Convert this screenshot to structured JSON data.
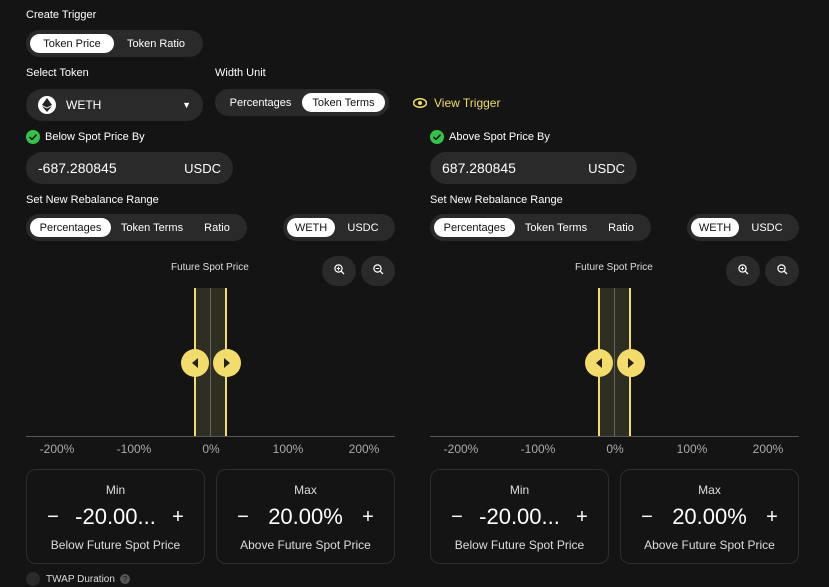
{
  "create_trigger": {
    "heading": "Create Trigger",
    "tabs": [
      {
        "label": "Token Price",
        "active": true
      },
      {
        "label": "Token Ratio",
        "active": false
      }
    ]
  },
  "select_token": {
    "heading": "Select Token",
    "value": "WETH",
    "icon": "ethereum-icon"
  },
  "width_unit": {
    "heading": "Width Unit",
    "tabs": [
      {
        "label": "Percentages",
        "active": false
      },
      {
        "label": "Token Terms",
        "active": true
      }
    ]
  },
  "view_trigger": {
    "label": "View Trigger",
    "icon": "eye-icon",
    "color": "#f2dc6b"
  },
  "panels": [
    {
      "check_label": "Below Spot Price By",
      "value": "-687.280845",
      "unit": "USDC",
      "rebalance_heading": "Set New Rebalance Range",
      "range_tabs": [
        {
          "label": "Percentages",
          "active": true
        },
        {
          "label": "Token Terms",
          "active": false
        },
        {
          "label": "Ratio",
          "active": false
        }
      ],
      "token_tabs": [
        {
          "label": "WETH",
          "active": true
        },
        {
          "label": "USDC",
          "active": false
        }
      ],
      "future_label": "Future Spot Price",
      "ticks": [
        "-200%",
        "-100%",
        "0%",
        "100%",
        "200%"
      ],
      "min": {
        "title": "Min",
        "value": "-20.00...",
        "sub": "Below Future Spot Price",
        "minus": "−",
        "plus": "+"
      },
      "max": {
        "title": "Max",
        "value": "20.00%",
        "sub": "Above Future Spot Price",
        "minus": "−",
        "plus": "+"
      }
    },
    {
      "check_label": "Above Spot Price By",
      "value": "687.280845",
      "unit": "USDC",
      "rebalance_heading": "Set New Rebalance Range",
      "range_tabs": [
        {
          "label": "Percentages",
          "active": true
        },
        {
          "label": "Token Terms",
          "active": false
        },
        {
          "label": "Ratio",
          "active": false
        }
      ],
      "token_tabs": [
        {
          "label": "WETH",
          "active": true
        },
        {
          "label": "USDC",
          "active": false
        }
      ],
      "future_label": "Future Spot Price",
      "ticks": [
        "-200%",
        "-100%",
        "0%",
        "100%",
        "200%"
      ],
      "min": {
        "title": "Min",
        "value": "-20.00...",
        "sub": "Below Future Spot Price",
        "minus": "−",
        "plus": "+"
      },
      "max": {
        "title": "Max",
        "value": "20.00%",
        "sub": "Above Future Spot Price",
        "minus": "−",
        "plus": "+"
      }
    }
  ],
  "twap": {
    "label": "TWAP Duration",
    "help_icon": "?"
  },
  "colors": {
    "accent": "#f2dc6b",
    "check": "#35c24a",
    "surface": "#2a2a2a",
    "background": "#141414"
  }
}
